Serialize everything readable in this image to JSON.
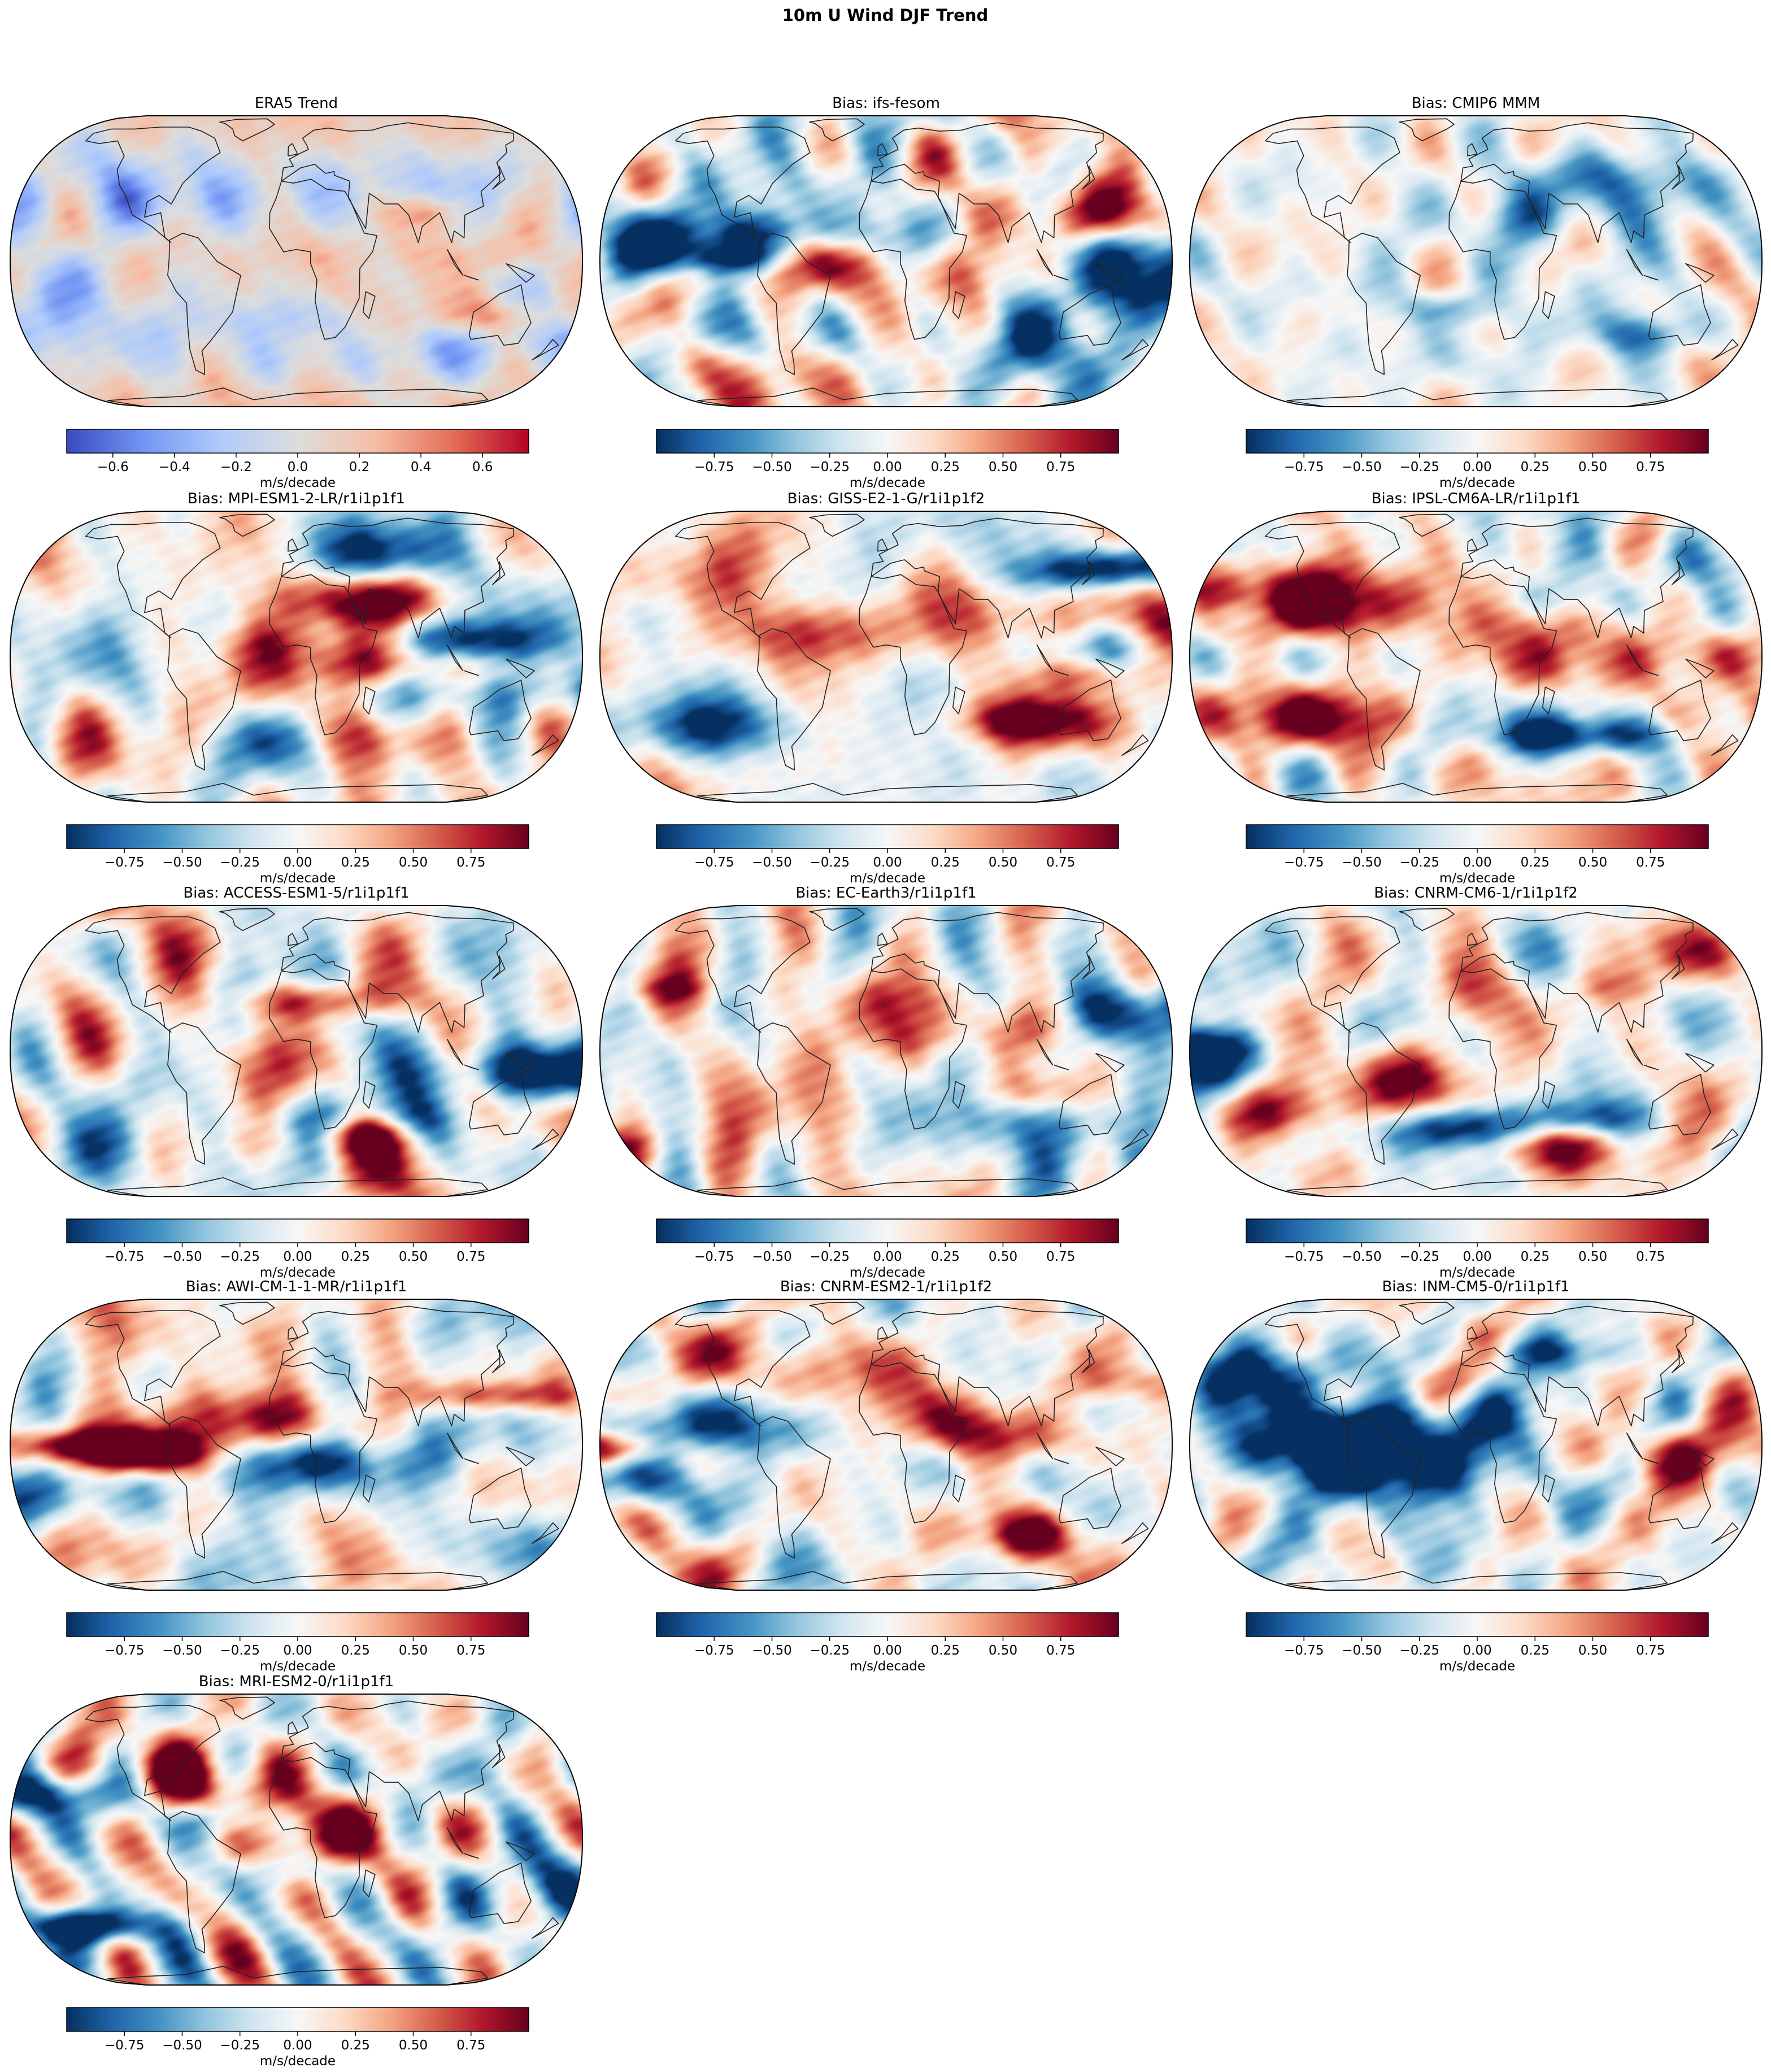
{
  "figure": {
    "title": "10m U Wind DJF Trend"
  },
  "colors": {
    "era5_cmap": [
      "#3b4cc0",
      "#7396f5",
      "#b0cbfb",
      "#dddddd",
      "#f6bfa6",
      "#e57058",
      "#b40426"
    ],
    "bias_cmap": [
      "#053061",
      "#2166ac",
      "#4393c3",
      "#92c5de",
      "#d1e5f0",
      "#f7f7f7",
      "#fddbc7",
      "#f4a582",
      "#d6604d",
      "#b2182b",
      "#67001f"
    ],
    "coastline": "#222222",
    "frame": "#000000"
  },
  "panels": [
    {
      "title": "ERA5 Trend",
      "kind": "era5",
      "seed": 11
    },
    {
      "title": "Bias: ifs-fesom",
      "kind": "bias",
      "seed": 23
    },
    {
      "title": "Bias: CMIP6 MMM",
      "kind": "bias",
      "seed": 37,
      "amp": 0.6
    },
    {
      "title": "Bias: MPI-ESM1-2-LR/r1i1p1f1",
      "kind": "bias",
      "seed": 41
    },
    {
      "title": "Bias: GISS-E2-1-G/r1i1p1f2",
      "kind": "bias",
      "seed": 53
    },
    {
      "title": "Bias: IPSL-CM6A-LR/r1i1p1f1",
      "kind": "bias",
      "seed": 67
    },
    {
      "title": "Bias: ACCESS-ESM1-5/r1i1p1f1",
      "kind": "bias",
      "seed": 71
    },
    {
      "title": "Bias: EC-Earth3/r1i1p1f1",
      "kind": "bias",
      "seed": 83
    },
    {
      "title": "Bias: CNRM-CM6-1/r1i1p1f2",
      "kind": "bias",
      "seed": 97
    },
    {
      "title": "Bias: AWI-CM-1-1-MR/r1i1p1f1",
      "kind": "bias",
      "seed": 101
    },
    {
      "title": "Bias: CNRM-ESM2-1/r1i1p1f2",
      "kind": "bias",
      "seed": 113
    },
    {
      "title": "Bias: INM-CM5-0/r1i1p1f1",
      "kind": "bias",
      "seed": 127
    },
    {
      "title": "Bias: MRI-ESM2-0/r1i1p1f1",
      "kind": "bias",
      "seed": 131
    }
  ],
  "colorbars": {
    "era5": {
      "range": [
        -0.75,
        0.75
      ],
      "ticks": [
        -0.6,
        -0.4,
        -0.2,
        0.0,
        0.2,
        0.4,
        0.6
      ],
      "tick_labels": [
        "−0.6",
        "−0.4",
        "−0.2",
        "0.0",
        "0.2",
        "0.4",
        "0.6"
      ],
      "label": "m/s/decade"
    },
    "bias": {
      "range": [
        -1.0,
        1.0
      ],
      "ticks": [
        -0.75,
        -0.5,
        -0.25,
        0.0,
        0.25,
        0.5,
        0.75
      ],
      "tick_labels": [
        "−0.75",
        "−0.50",
        "−0.25",
        "0.00",
        "0.25",
        "0.50",
        "0.75"
      ],
      "label": "m/s/decade"
    }
  }
}
